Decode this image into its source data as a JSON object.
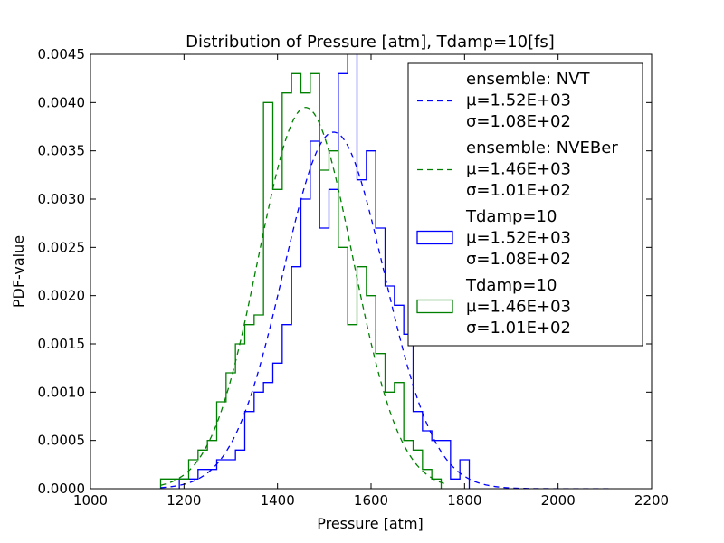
{
  "chart_data": {
    "type": "histogram",
    "title": "Distribution of Pressure [atm], Tdamp=10[fs]",
    "xlabel": "Pressure [atm]",
    "ylabel": "PDF-value",
    "xlim": [
      1000,
      2200
    ],
    "ylim": [
      0,
      0.0045
    ],
    "xticks": [
      1000,
      1200,
      1400,
      1600,
      1800,
      2000,
      2200
    ],
    "xtick_labels": [
      "1000",
      "1200",
      "1400",
      "1600",
      "1800",
      "2000",
      "2200"
    ],
    "yticks": [
      0,
      0.0005,
      0.001,
      0.0015,
      0.002,
      0.0025,
      0.003,
      0.0035,
      0.004,
      0.0045
    ],
    "ytick_labels": [
      "0.0000",
      "0.0005",
      "0.0010",
      "0.0015",
      "0.0020",
      "0.0025",
      "0.0030",
      "0.0035",
      "0.0040",
      "0.0045"
    ],
    "grid": false,
    "legend_position": "top-right",
    "colors": {
      "blue": "#0000ff",
      "green": "#008000"
    },
    "curves": [
      {
        "legend_lines": [
          "ensemble: NVT",
          "μ=1.52E+03",
          "σ=1.08E+02"
        ],
        "mu": 1520,
        "sigma": 108,
        "color": "#0000ff",
        "style": "dashed",
        "x_range": [
          1150,
          2110
        ]
      },
      {
        "legend_lines": [
          "ensemble: NVEBer",
          "μ=1.46E+03",
          "σ=1.01E+02"
        ],
        "mu": 1460,
        "sigma": 101,
        "color": "#008000",
        "style": "dashed",
        "x_range": [
          1150,
          1760
        ]
      }
    ],
    "histograms": [
      {
        "legend_lines": [
          "Tdamp=10",
          "μ=1.52E+03",
          "σ=1.08E+02"
        ],
        "color": "#0000ff",
        "bin_edges": [
          1190,
          1210,
          1230,
          1250,
          1270,
          1290,
          1310,
          1330,
          1350,
          1370,
          1390,
          1410,
          1430,
          1450,
          1470,
          1490,
          1510,
          1530,
          1550,
          1570,
          1590,
          1610,
          1630,
          1650,
          1670,
          1690,
          1710,
          1730,
          1750,
          1770,
          1790,
          1810
        ],
        "values": [
          0.0001,
          0.0001,
          0.0002,
          0.0002,
          0.0003,
          0.0003,
          0.0004,
          0.0008,
          0.001,
          0.0011,
          0.0013,
          0.0017,
          0.0023,
          0.003,
          0.0036,
          0.0027,
          0.0031,
          0.0043,
          0.0048,
          0.0032,
          0.0035,
          0.0027,
          0.0021,
          0.0019,
          0.0016,
          0.0008,
          0.0006,
          0.0005,
          0.0005,
          0.0001,
          0.0003
        ]
      },
      {
        "legend_lines": [
          "Tdamp=10",
          "μ=1.46E+03",
          "σ=1.01E+02"
        ],
        "color": "#008000",
        "bin_edges": [
          1150,
          1170,
          1190,
          1210,
          1230,
          1250,
          1270,
          1290,
          1310,
          1330,
          1350,
          1370,
          1390,
          1410,
          1430,
          1450,
          1470,
          1490,
          1510,
          1530,
          1550,
          1570,
          1590,
          1610,
          1630,
          1650,
          1670,
          1690,
          1710,
          1730,
          1750
        ],
        "values": [
          0.0001,
          0.0001,
          0.0001,
          0.0003,
          0.0004,
          0.0005,
          0.0009,
          0.0012,
          0.0015,
          0.0017,
          0.0018,
          0.004,
          0.0031,
          0.0041,
          0.0043,
          0.0041,
          0.0043,
          0.0033,
          0.0035,
          0.0025,
          0.0017,
          0.0023,
          0.002,
          0.0014,
          0.001,
          0.0011,
          0.0005,
          0.0004,
          0.0002,
          0.0001
        ]
      }
    ]
  }
}
